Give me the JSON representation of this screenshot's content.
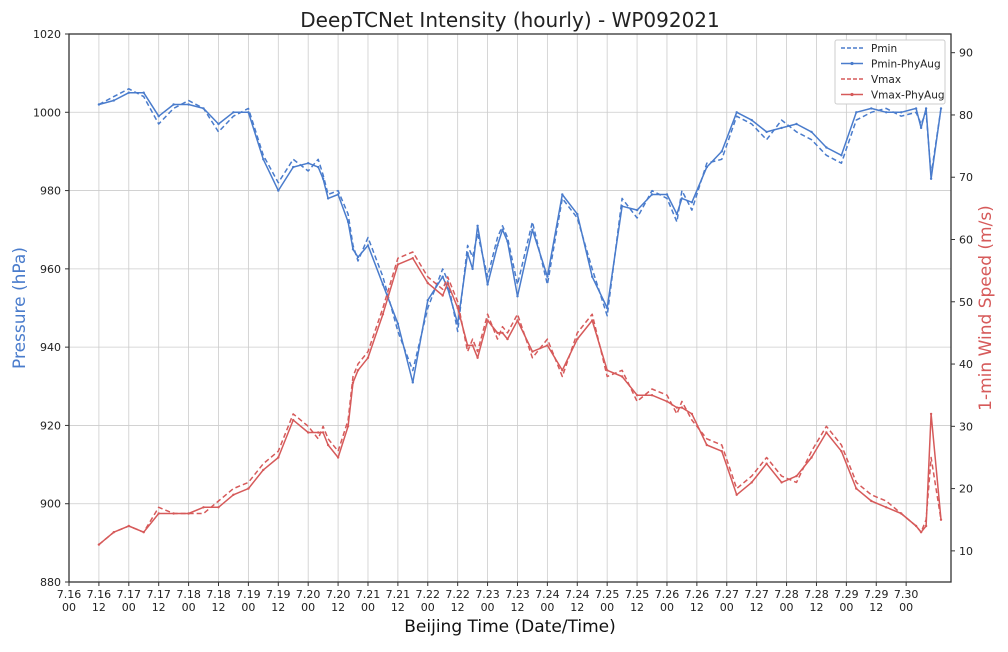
{
  "chart_data": {
    "type": "line",
    "title": "DeepTCNet Intensity (hourly) - WP092021",
    "xlabel": "Beijing Time (Date/Time)",
    "ylabel_left": "Pressure (hPa)",
    "ylabel_right": "1-min Wind Speed (m/s)",
    "x_unit": "hours since 7.16 00",
    "xlim": [
      0,
      354
    ],
    "ylim_left": [
      880,
      1020
    ],
    "ylim_right": [
      5,
      93
    ],
    "yticks_left": [
      880,
      900,
      920,
      940,
      960,
      980,
      1000,
      1020
    ],
    "yticks_right": [
      10,
      20,
      30,
      40,
      50,
      60,
      70,
      80,
      90
    ],
    "xticks": [
      {
        "date": "7.16",
        "time": "00"
      },
      {
        "date": "7.16",
        "time": "12"
      },
      {
        "date": "7.17",
        "time": "00"
      },
      {
        "date": "7.17",
        "time": "12"
      },
      {
        "date": "7.18",
        "time": "00"
      },
      {
        "date": "7.18",
        "time": "12"
      },
      {
        "date": "7.19",
        "time": "00"
      },
      {
        "date": "7.19",
        "time": "12"
      },
      {
        "date": "7.20",
        "time": "00"
      },
      {
        "date": "7.20",
        "time": "12"
      },
      {
        "date": "7.21",
        "time": "00"
      },
      {
        "date": "7.21",
        "time": "12"
      },
      {
        "date": "7.22",
        "time": "00"
      },
      {
        "date": "7.22",
        "time": "12"
      },
      {
        "date": "7.23",
        "time": "00"
      },
      {
        "date": "7.23",
        "time": "12"
      },
      {
        "date": "7.24",
        "time": "00"
      },
      {
        "date": "7.24",
        "time": "12"
      },
      {
        "date": "7.25",
        "time": "00"
      },
      {
        "date": "7.25",
        "time": "12"
      },
      {
        "date": "7.26",
        "time": "00"
      },
      {
        "date": "7.26",
        "time": "12"
      },
      {
        "date": "7.27",
        "time": "00"
      },
      {
        "date": "7.27",
        "time": "12"
      },
      {
        "date": "7.28",
        "time": "00"
      },
      {
        "date": "7.28",
        "time": "12"
      },
      {
        "date": "7.29",
        "time": "00"
      },
      {
        "date": "7.29",
        "time": "12"
      },
      {
        "date": "7.30",
        "time": "00"
      }
    ],
    "grid": true,
    "legend_position": "top-right",
    "colors": {
      "pressure": "#4a7ccc",
      "wind": "#d65a5a",
      "grid": "#cccccc",
      "axis": "#333333"
    },
    "x": [
      12,
      18,
      24,
      30,
      36,
      42,
      48,
      54,
      60,
      66,
      72,
      78,
      84,
      90,
      96,
      100,
      102,
      104,
      108,
      112,
      114,
      116,
      120,
      126,
      132,
      138,
      144,
      150,
      152,
      156,
      160,
      162,
      164,
      168,
      172,
      174,
      176,
      180,
      186,
      192,
      198,
      204,
      210,
      216,
      222,
      228,
      234,
      240,
      244,
      246,
      250,
      256,
      262,
      268,
      274,
      280,
      286,
      292,
      298,
      304,
      310,
      316,
      322,
      328,
      334,
      340,
      342,
      344,
      346,
      350
    ],
    "series": [
      {
        "name": "Pmin",
        "axis": "left",
        "dash": "5,3",
        "values": [
          1002,
          1004,
          1006,
          1004,
          997,
          1001,
          1003,
          1001,
          995,
          999,
          1001,
          989,
          982,
          988,
          985,
          988,
          984,
          979,
          980,
          974,
          966,
          962,
          968,
          958,
          944,
          934,
          950,
          960,
          957,
          944,
          966,
          963,
          969,
          958,
          968,
          971,
          968,
          956,
          972,
          956,
          978,
          973,
          960,
          948,
          978,
          973,
          980,
          978,
          972,
          980,
          975,
          987,
          988,
          999,
          997,
          993,
          998,
          995,
          993,
          989,
          987,
          998,
          1000,
          1001,
          999,
          1000,
          997,
          1000,
          984,
          1001
        ]
      },
      {
        "name": "Pmin-PhyAug",
        "axis": "left",
        "dash": "",
        "values": [
          1002,
          1003,
          1005,
          1005,
          999,
          1002,
          1002,
          1001,
          997,
          1000,
          1000,
          988,
          980,
          986,
          987,
          986,
          983,
          978,
          979,
          972,
          965,
          963,
          966,
          956,
          946,
          931,
          952,
          958,
          955,
          946,
          964,
          960,
          971,
          956,
          966,
          970,
          967,
          953,
          970,
          958,
          979,
          974,
          958,
          950,
          976,
          975,
          979,
          979,
          974,
          978,
          977,
          986,
          990,
          1000,
          998,
          995,
          996,
          997,
          995,
          991,
          989,
          1000,
          1001,
          1000,
          1000,
          1001,
          996,
          1001,
          983,
          1001
        ]
      },
      {
        "name": "Vmax",
        "axis": "right",
        "dash": "5,3",
        "values": [
          11,
          13,
          14,
          13,
          17,
          16,
          16,
          16,
          18,
          20,
          21,
          24,
          26,
          32,
          30,
          28,
          30,
          28,
          26,
          31,
          38,
          40,
          42,
          49,
          57,
          58,
          54,
          52,
          54,
          50,
          42,
          44,
          42,
          48,
          44,
          46,
          45,
          48,
          41,
          44,
          38,
          45,
          48,
          38,
          39,
          34,
          36,
          35,
          32,
          34,
          31,
          28,
          27,
          20,
          22,
          25,
          22,
          21,
          26,
          30,
          27,
          21,
          19,
          18,
          16,
          14,
          13,
          15,
          25,
          15
        ]
      },
      {
        "name": "Vmax-PhyAug",
        "axis": "right",
        "dash": "",
        "values": [
          11,
          13,
          14,
          13,
          16,
          16,
          16,
          17,
          17,
          19,
          20,
          23,
          25,
          31,
          29,
          29,
          29,
          27,
          25,
          30,
          37,
          39,
          41,
          48,
          56,
          57,
          53,
          51,
          53,
          49,
          43,
          43,
          41,
          47,
          45,
          45,
          44,
          47,
          42,
          43,
          39,
          44,
          47,
          39,
          38,
          35,
          35,
          34,
          33,
          33,
          32,
          27,
          26,
          19,
          21,
          24,
          21,
          22,
          25,
          29,
          26,
          20,
          18,
          17,
          16,
          14,
          13,
          14,
          32,
          15
        ]
      }
    ]
  }
}
